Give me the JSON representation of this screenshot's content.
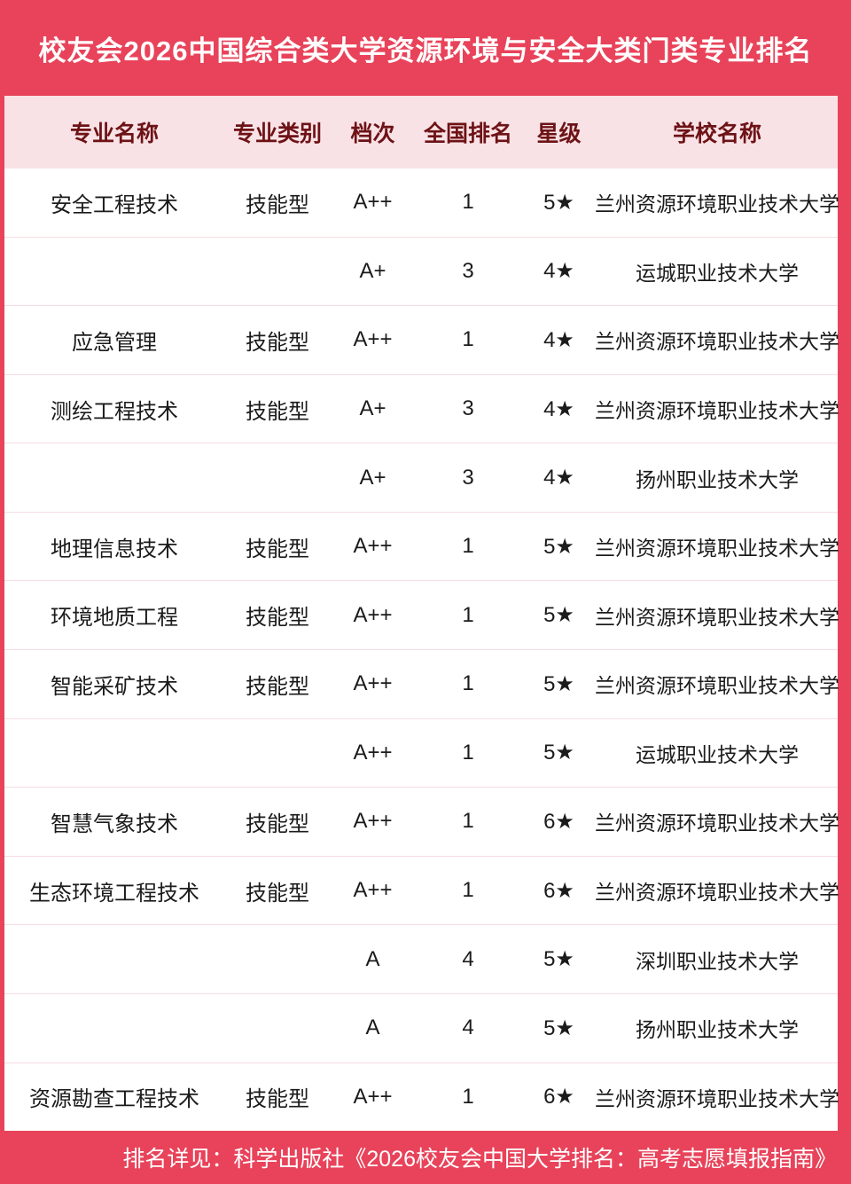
{
  "title": "校友会2026中国综合类大学资源环境与安全大类门类专业排名",
  "chart_data": {
    "type": "table",
    "title": "校友会2026中国综合类大学资源环境与安全大类门类专业排名",
    "columns": [
      "专业名称",
      "专业类别",
      "档次",
      "全国排名",
      "星级",
      "学校名称"
    ],
    "rows": [
      [
        "安全工程技术",
        "技能型",
        "A++",
        "1",
        "5★",
        "兰州资源环境职业技术大学"
      ],
      [
        "",
        "",
        "A+",
        "3",
        "4★",
        "运城职业技术大学"
      ],
      [
        "应急管理",
        "技能型",
        "A++",
        "1",
        "4★",
        "兰州资源环境职业技术大学"
      ],
      [
        "测绘工程技术",
        "技能型",
        "A+",
        "3",
        "4★",
        "兰州资源环境职业技术大学"
      ],
      [
        "",
        "",
        "A+",
        "3",
        "4★",
        "扬州职业技术大学"
      ],
      [
        "地理信息技术",
        "技能型",
        "A++",
        "1",
        "5★",
        "兰州资源环境职业技术大学"
      ],
      [
        "环境地质工程",
        "技能型",
        "A++",
        "1",
        "5★",
        "兰州资源环境职业技术大学"
      ],
      [
        "智能采矿技术",
        "技能型",
        "A++",
        "1",
        "5★",
        "兰州资源环境职业技术大学"
      ],
      [
        "",
        "",
        "A++",
        "1",
        "5★",
        "运城职业技术大学"
      ],
      [
        "智慧气象技术",
        "技能型",
        "A++",
        "1",
        "6★",
        "兰州资源环境职业技术大学"
      ],
      [
        "生态环境工程技术",
        "技能型",
        "A++",
        "1",
        "6★",
        "兰州资源环境职业技术大学"
      ],
      [
        "",
        "",
        "A",
        "4",
        "5★",
        "深圳职业技术大学"
      ],
      [
        "",
        "",
        "A",
        "4",
        "5★",
        "扬州职业技术大学"
      ],
      [
        "资源勘查工程技术",
        "技能型",
        "A++",
        "1",
        "6★",
        "兰州资源环境职业技术大学"
      ]
    ]
  },
  "footer": {
    "note": "排名详见：科学出版社《2026校友会中国大学排名：高考志愿填报指南》"
  },
  "colors": {
    "frame_red": "#E8435A",
    "header_bg": "#F8E2E5",
    "header_text": "#6D1216",
    "body_text": "#1B1B1B",
    "divider": "#F6DDE2",
    "title_text": "#FFFFFF"
  }
}
